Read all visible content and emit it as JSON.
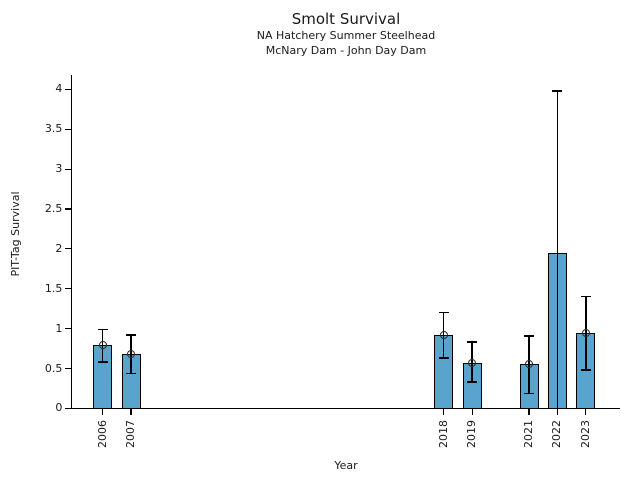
{
  "chart_data": {
    "type": "bar",
    "title": "Smolt Survival",
    "subtitle1": "NA Hatchery Summer Steelhead",
    "subtitle2": "McNary Dam - John Day Dam",
    "xlabel": "Year",
    "ylabel": "PIT-Tag Survival",
    "ylim": [
      0,
      4.18
    ],
    "xlim": [
      2004.9,
      2024.2
    ],
    "yticks": [
      0,
      0.5,
      1,
      1.5,
      2,
      2.5,
      3,
      3.5,
      4
    ],
    "ytick_labels": [
      "0",
      "0.5",
      "1",
      "1.5",
      "2",
      "2.5",
      "3",
      "3.5",
      "4"
    ],
    "grid": false,
    "legend": "none",
    "bar_color": "#58A4CF",
    "bar_edge_color": "#000000",
    "error_color": "#000000",
    "marker_style": "open-circle",
    "series": [
      {
        "year": 2006,
        "value": 0.8,
        "err_low": 0.58,
        "err_high": 0.99,
        "marker": true
      },
      {
        "year": 2007,
        "value": 0.68,
        "err_low": 0.44,
        "err_high": 0.92,
        "marker": true
      },
      {
        "year": 2018,
        "value": 0.92,
        "err_low": 0.63,
        "err_high": 1.2,
        "marker": true
      },
      {
        "year": 2019,
        "value": 0.57,
        "err_low": 0.33,
        "err_high": 0.83,
        "marker": true
      },
      {
        "year": 2021,
        "value": 0.56,
        "err_low": 0.19,
        "err_high": 0.91,
        "marker": true
      },
      {
        "year": 2022,
        "value": 1.95,
        "err_low": 0.0,
        "err_high": 3.98,
        "marker": false
      },
      {
        "year": 2023,
        "value": 0.95,
        "err_low": 0.48,
        "err_high": 1.4,
        "marker": true
      }
    ]
  }
}
